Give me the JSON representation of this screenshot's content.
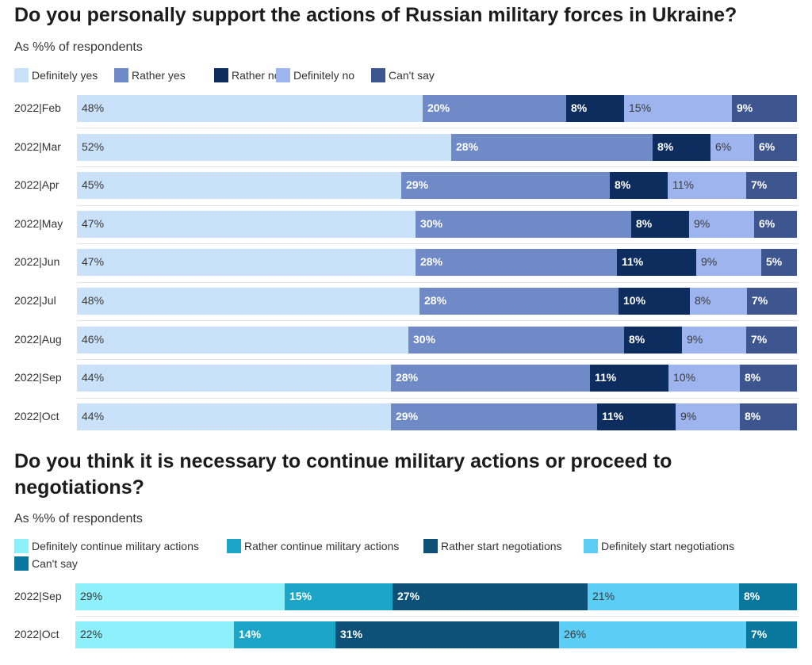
{
  "chart_data": [
    {
      "type": "bar",
      "orientation": "horizontal",
      "stacked": true,
      "title": "Do you personally support the actions of Russian military forces in Ukraine?",
      "subtitle": "As %% of respondents",
      "legend_position": "top-left",
      "categories": [
        "2022|Feb",
        "2022|Mar",
        "2022|Apr",
        "2022|May",
        "2022|Jun",
        "2022|Jul",
        "2022|Aug",
        "2022|Sep",
        "2022|Oct"
      ],
      "series": [
        {
          "name": "Definitely yes",
          "color": "#c9e2f9",
          "text": "light",
          "values": [
            48,
            52,
            45,
            47,
            47,
            48,
            46,
            44,
            44
          ]
        },
        {
          "name": "Rather yes",
          "color": "#6f8ac7",
          "text": "dark",
          "values": [
            20,
            28,
            29,
            30,
            28,
            28,
            30,
            28,
            29
          ]
        },
        {
          "name": "Rather no",
          "color": "#0d2d5e",
          "text": "dark",
          "values": [
            8,
            8,
            8,
            8,
            11,
            10,
            8,
            11,
            11
          ]
        },
        {
          "name": "Definitely no",
          "color": "#9db4ee",
          "text": "light",
          "values": [
            15,
            6,
            11,
            9,
            9,
            8,
            9,
            10,
            9
          ]
        },
        {
          "name": "Can't say",
          "color": "#3e5690",
          "text": "dark",
          "values": [
            9,
            6,
            7,
            6,
            5,
            7,
            7,
            8,
            8
          ]
        }
      ]
    },
    {
      "type": "bar",
      "orientation": "horizontal",
      "stacked": true,
      "title": "Do you think it is necessary to continue military actions or proceed to negotiations?",
      "subtitle": "As %% of respondents",
      "legend_position": "top-left",
      "categories": [
        "2022|Sep",
        "2022|Oct"
      ],
      "series": [
        {
          "name": "Definitely continue military actions",
          "color": "#8ef0fb",
          "text": "light",
          "values": [
            29,
            22
          ]
        },
        {
          "name": "Rather continue military actions",
          "color": "#1ba6c8",
          "text": "dark",
          "values": [
            15,
            14
          ]
        },
        {
          "name": "Rather start negotiations",
          "color": "#0d5179",
          "text": "dark",
          "values": [
            27,
            31
          ]
        },
        {
          "name": "Definitely start negotiations",
          "color": "#5ccdf5",
          "text": "light",
          "values": [
            21,
            26
          ]
        },
        {
          "name": "Can't say",
          "color": "#0a779e",
          "text": "dark",
          "values": [
            8,
            7
          ]
        }
      ]
    }
  ]
}
